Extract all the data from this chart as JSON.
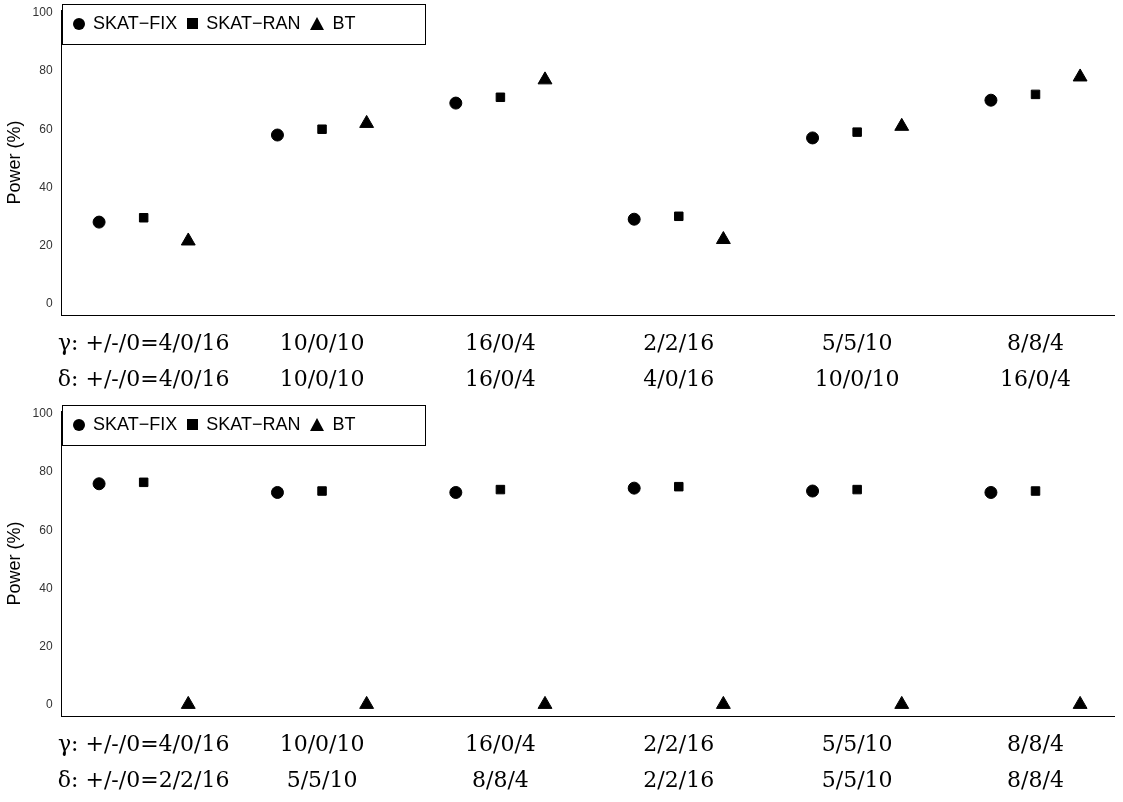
{
  "chart_data": [
    {
      "type": "scatter",
      "ylabel": "Power (%)",
      "categories": [
        "γ: +/-/0=4/0/16\nδ: +/-/0=4/0/16",
        "10/0/10\n10/0/10",
        "16/0/4\n16/0/4",
        "2/2/16\n4/0/16",
        "5/5/10\n10/0/10",
        "8/8/4\n16/0/4"
      ],
      "series": [
        {
          "name": "SKAT−FIX",
          "color": "#000000",
          "marker": "circle",
          "values": [
            28,
            58,
            69,
            29,
            57,
            70
          ]
        },
        {
          "name": "SKAT−RAN",
          "color": "#000000",
          "marker": "square",
          "values": [
            29.5,
            60,
            71,
            30,
            59,
            72
          ]
        },
        {
          "name": "BT",
          "color": "#000000",
          "marker": "triangle",
          "values": [
            21.5,
            62,
            77,
            22,
            61,
            78
          ]
        }
      ],
      "ylim": [
        -4,
        101
      ],
      "yticks": [
        0,
        20,
        40,
        60,
        80,
        100
      ],
      "grid": false,
      "legend": "top left"
    },
    {
      "type": "scatter",
      "ylabel": "Power (%)",
      "categories": [
        "γ: +/-/0=4/0/16\nδ: +/-/0=2/2/16",
        "10/0/10\n5/5/10",
        "16/0/4\n8/8/4",
        "2/2/16\n2/2/16",
        "5/5/10\n5/5/10",
        "8/8/4\n8/8/4"
      ],
      "series": [
        {
          "name": "SKAT−FIX",
          "color": "#000000",
          "marker": "circle",
          "values": [
            76,
            73,
            73,
            74.5,
            73.5,
            73
          ]
        },
        {
          "name": "SKAT−RAN",
          "color": "#000000",
          "marker": "square",
          "values": [
            76.5,
            73.5,
            74,
            75,
            74,
            73.5
          ]
        },
        {
          "name": "BT",
          "color": "#000000",
          "marker": "triangle",
          "values": [
            0,
            0,
            0,
            0,
            0,
            0
          ]
        }
      ],
      "ylim": [
        -4,
        101
      ],
      "yticks": [
        0,
        20,
        40,
        60,
        80,
        100
      ],
      "grid": false,
      "legend": "top left"
    }
  ]
}
